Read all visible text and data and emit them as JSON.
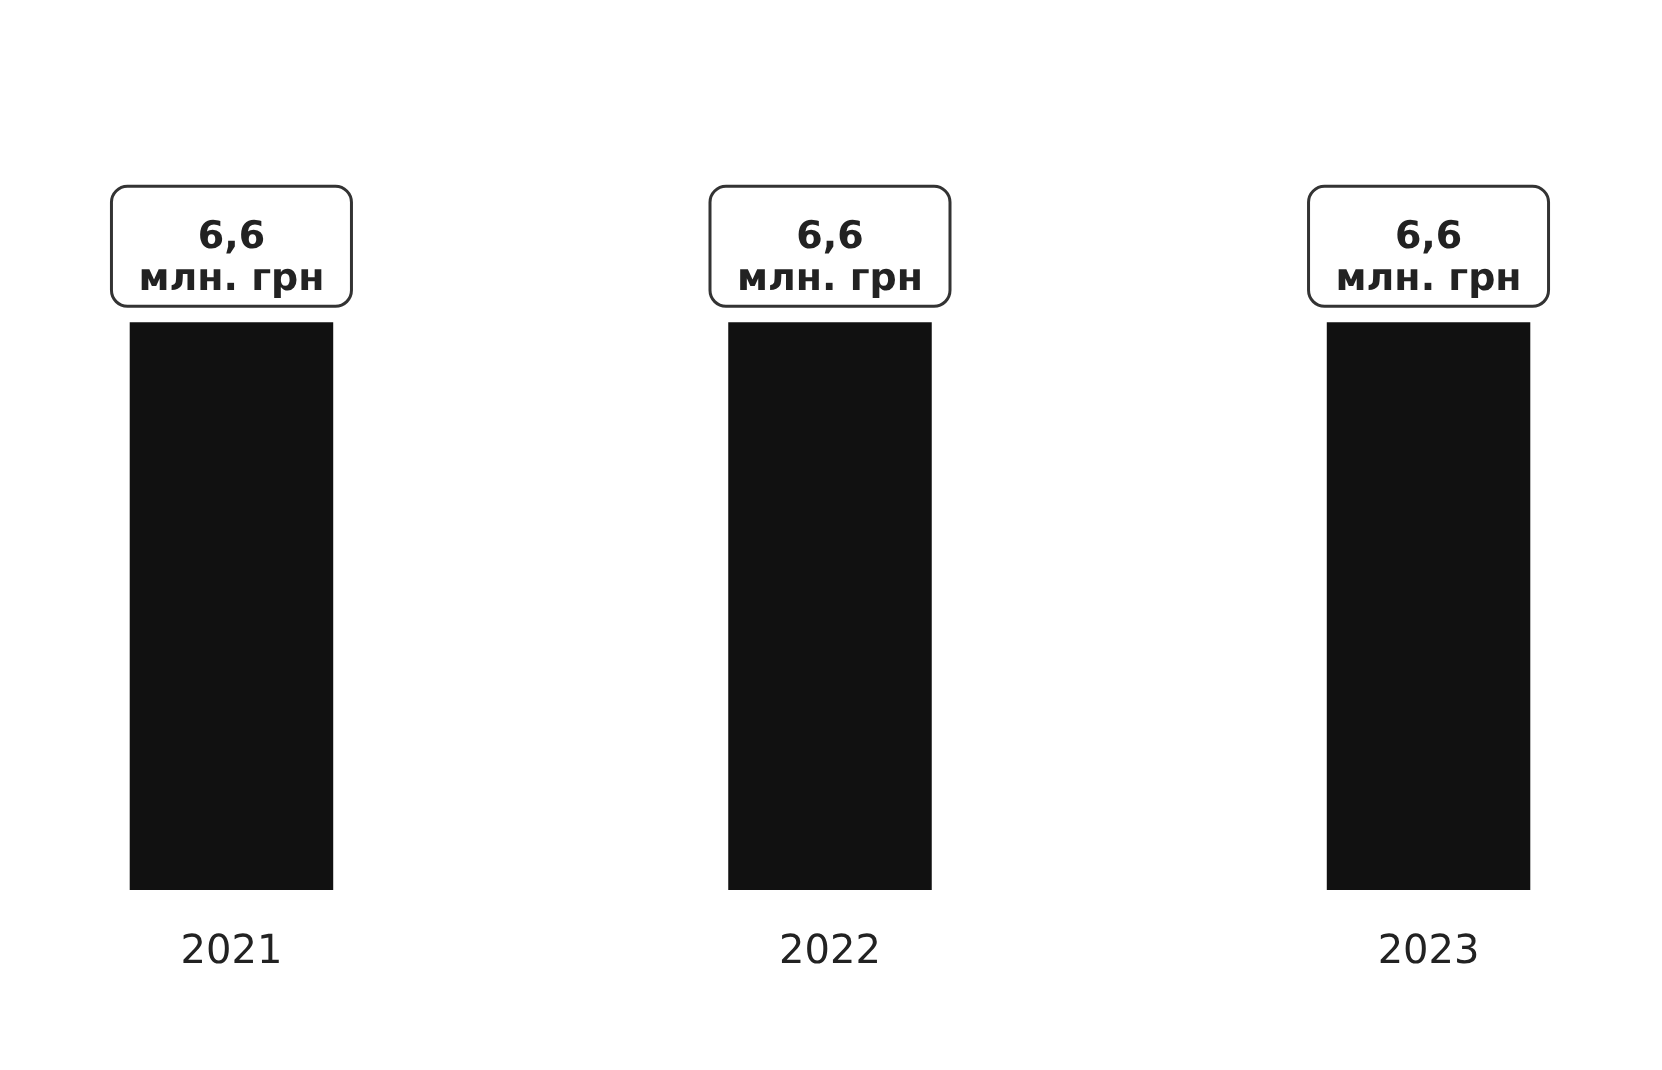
{
  "chart_data": {
    "type": "bar",
    "categories": [
      "2021",
      "2022",
      "2023"
    ],
    "values": [
      6.6,
      6.6,
      6.6
    ],
    "value_labels": [
      "6,6\nмлн. грн",
      "6,6\nмлн. грн",
      "6,6\nмлн. грн"
    ],
    "color": "#111111",
    "grid": false
  }
}
